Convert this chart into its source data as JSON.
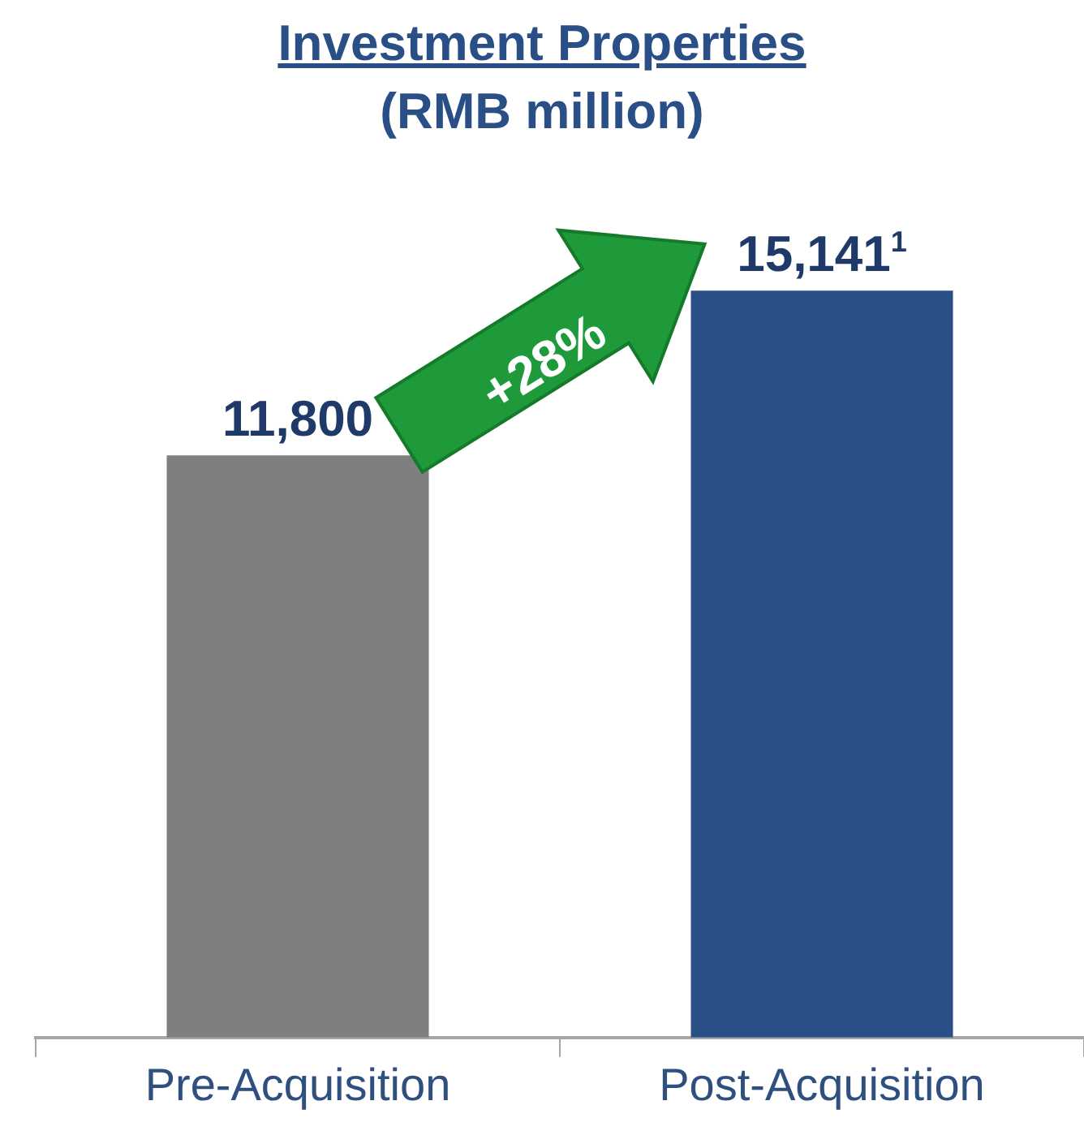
{
  "chart_data": {
    "type": "bar",
    "title": "Investment Properties",
    "subtitle": "(RMB million)",
    "categories": [
      "Pre-Acquisition",
      "Post-Acquisition"
    ],
    "values": [
      11800,
      15141
    ],
    "colors": [
      "#7f7f7f",
      "#2a4f87"
    ],
    "value_labels": [
      "11,800",
      "15,141$^{1}$"
    ],
    "annotations": [
      "+28%"
    ],
    "grid": false,
    "legend": false
  }
}
